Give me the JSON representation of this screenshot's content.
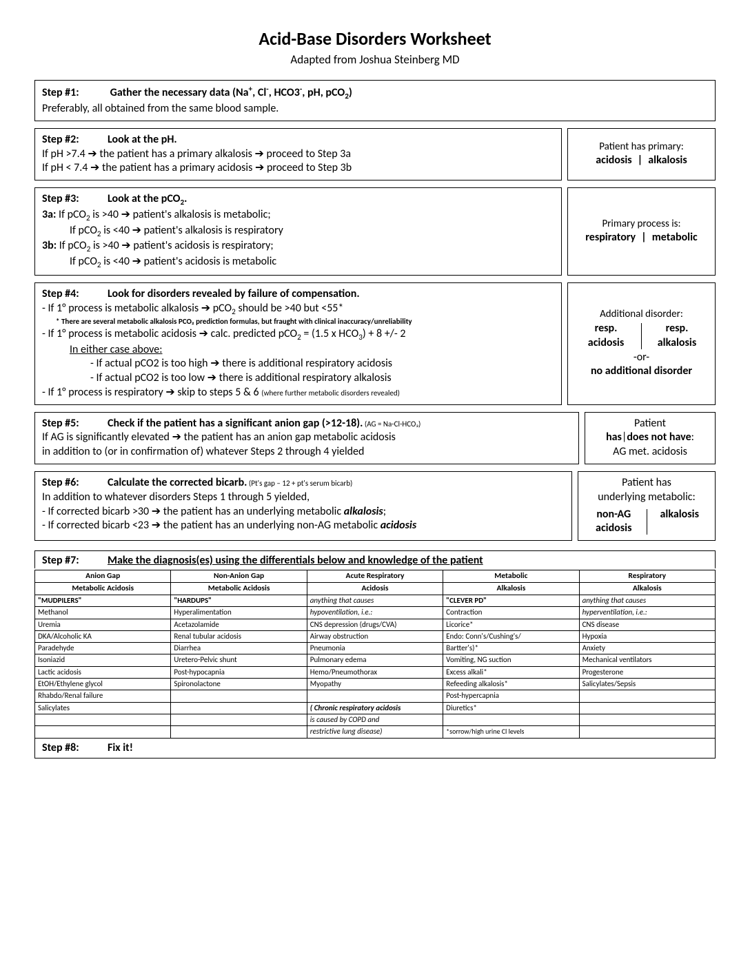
{
  "title": "Acid-Base Disorders Worksheet",
  "subtitle": "Adapted from Joshua Steinberg MD",
  "step1": {
    "label": "Step #1:",
    "title_pre": "Gather the necessary data (Na",
    "title_post": ")",
    "body": "Preferably, all obtained from the same blood sample."
  },
  "step2": {
    "label": "Step #2:",
    "title": "Look at the pH.",
    "l1a": "If pH >7.4 ",
    "l1b": " the patient has a primary alkalosis ",
    "l1c": " proceed to Step 3a",
    "l2a": "If pH < 7.4 ",
    "l2b": " the patient has a primary acidosis ",
    "l2c": " proceed to Step 3b",
    "side_head": "Patient has primary:",
    "side_l": "acidosis",
    "side_r": "alkalosis"
  },
  "step3": {
    "label": "Step #3:",
    "title": "Look at the pCO",
    "a": "3a:",
    "a1a": "  If pCO",
    "a1b": " is >40 ",
    "a1c": " patient's alkalosis is metabolic;",
    "a2a": "If pCO",
    "a2b": " is <40 ",
    "a2c": " patient's alkalosis is respiratory",
    "b": "3b:",
    "b1a": "  If pCO",
    "b1b": " is >40 ",
    "b1c": " patient's acidosis is respiratory;",
    "b2a": "If pCO",
    "b2b": " is <40 ",
    "b2c": " patient's acidosis is metabolic",
    "side_head": "Primary process is:",
    "side_l": "respiratory",
    "side_r": "metabolic"
  },
  "step4": {
    "label": "Step #4:",
    "title": "Look for disorders revealed by failure of compensation.",
    "l1a": "- If 1° process is metabolic alkalosis ",
    "l1b": " pCO",
    "l1c": " should be >40 but <55*",
    "note": "* There are several metabolic alkalosis PCO₂ prediction formulas, but fraught with clinical inaccuracy/unreliability",
    "l2a": "- If 1° process is metabolic acidosis ",
    "l2b": " calc. predicted pCO",
    "l2c": " = (1.5 x HCO",
    "l2d": ") + 8 +/- 2",
    "eitherLabel": "In either case above:",
    "e1a": "- If actual pCO2 is too high ",
    "e1b": " there is additional respiratory acidosis",
    "e2a": "- If actual pCO2 is too low ",
    "e2b": " there is additional respiratory alkalosis",
    "l3a": "- If 1° process is respiratory ",
    "l3b": " skip to steps 5 & 6 ",
    "l3note": "(where further metabolic disorders revealed)",
    "side_head": "Additional disorder:",
    "side_tl": "resp.",
    "side_bl": "acidosis",
    "side_tr": "resp.",
    "side_br": "alkalosis",
    "side_or": "-or-",
    "side_none": "no additional disorder"
  },
  "step5": {
    "label": "Step #5:",
    "title": "Check if the patient has a significant anion gap (>12-18).",
    "title_note": " (AG = Na-Cl-HCO₃)",
    "l1a": "If AG is significantly elevated ",
    "l1b": " the patient has an anion gap metabolic acidosis",
    "l2": "in addition to (or in confirmation of) whatever Steps 2 through 4 yielded",
    "side_l1": "Patient",
    "side_l2a": "has",
    "side_l2b": "does not have",
    "side_l3": "AG met. acidosis"
  },
  "step6": {
    "label": "Step #6:",
    "title": "Calculate the corrected bicarb.",
    "title_note": "  (Pt's gap – 12 + pt's serum bicarb)",
    "l1": "In addition to whatever disorders Steps 1 through 5 yielded,",
    "l2a": "- If corrected bicarb >30 ",
    "l2b": " the patient has an underlying metabolic ",
    "l2c": "alkalosis",
    "l2d": ";",
    "l3a": "- If corrected bicarb <23 ",
    "l3b": " the patient has an underlying non-AG metabolic ",
    "l3c": "acidosis",
    "side_l1": "Patient has",
    "side_l2": "underlying metabolic:",
    "side_tl": "non-AG",
    "side_bl": "acidosis",
    "side_tr": "alkalosis"
  },
  "step7": {
    "label": "Step #7:",
    "title": "Make the diagnosis(es) using the differentials below and knowledge of the patient",
    "headers": [
      [
        "Anion Gap",
        "Metabolic Acidosis"
      ],
      [
        "Non-Anion Gap",
        "Metabolic Acidosis"
      ],
      [
        "Acute Respiratory",
        "Acidosis"
      ],
      [
        "Metabolic",
        "Alkalosis"
      ],
      [
        "Respiratory",
        "Alkalosis"
      ]
    ],
    "rows": [
      [
        "\"MUDPILERS\"",
        "\"HARDUPS\"",
        "anything that causes",
        "\"CLEVER PD\"",
        "anything that causes"
      ],
      [
        "Methanol",
        "Hyperalimentation",
        "hypoventilation, i.e.:",
        "Contraction",
        "hyperventilation, i.e.:"
      ],
      [
        "Uremia",
        "Acetazolamide",
        "CNS depression (drugs/CVA)",
        "Licorice*",
        "CNS disease"
      ],
      [
        "DKA/Alcoholic KA",
        "Renal tubular acidosis",
        "Airway obstruction",
        "Endo:  Conn's/Cushing's/",
        "Hypoxia"
      ],
      [
        "Paradehyde",
        "Diarrhea",
        "Pneumonia",
        "             Bartter's)*",
        "Anxiety"
      ],
      [
        "Isoniazid",
        "Uretero-Pelvic shunt",
        "Pulmonary edema",
        "Vomiting, NG suction",
        "Mechanical ventilators"
      ],
      [
        "Lactic acidosis",
        "Post-hypocapnia",
        "Hemo/Pneumothorax",
        "Excess alkali*",
        "Progesterone"
      ],
      [
        "EtOH/Ethylene glycol",
        "Spironolactone",
        "Myopathy",
        "Refeeding alkalosis*",
        "Salicylates/Sepsis"
      ],
      [
        "Rhabdo/Renal failure",
        "",
        "",
        "Post-hypercapnia",
        ""
      ],
      [
        "Salicylates",
        "",
        "( Chronic respiratory acidosis",
        "Diuretics*",
        ""
      ],
      [
        "",
        "",
        "is caused by COPD and",
        "",
        ""
      ],
      [
        "",
        "",
        "restrictive lung disease)",
        "*sorrow/high urine Cl levels",
        ""
      ]
    ],
    "italic_cells": [
      [
        0,
        2
      ],
      [
        1,
        2
      ],
      [
        0,
        4
      ],
      [
        1,
        4
      ],
      [
        9,
        2
      ],
      [
        10,
        2
      ],
      [
        11,
        2
      ]
    ],
    "bold_cells": [
      [
        0,
        0
      ],
      [
        0,
        1
      ],
      [
        0,
        3
      ],
      [
        9,
        2
      ]
    ],
    "tiny_cells": [
      [
        11,
        3
      ]
    ]
  },
  "step8": {
    "label": "Step #8:",
    "title": "Fix it!"
  }
}
